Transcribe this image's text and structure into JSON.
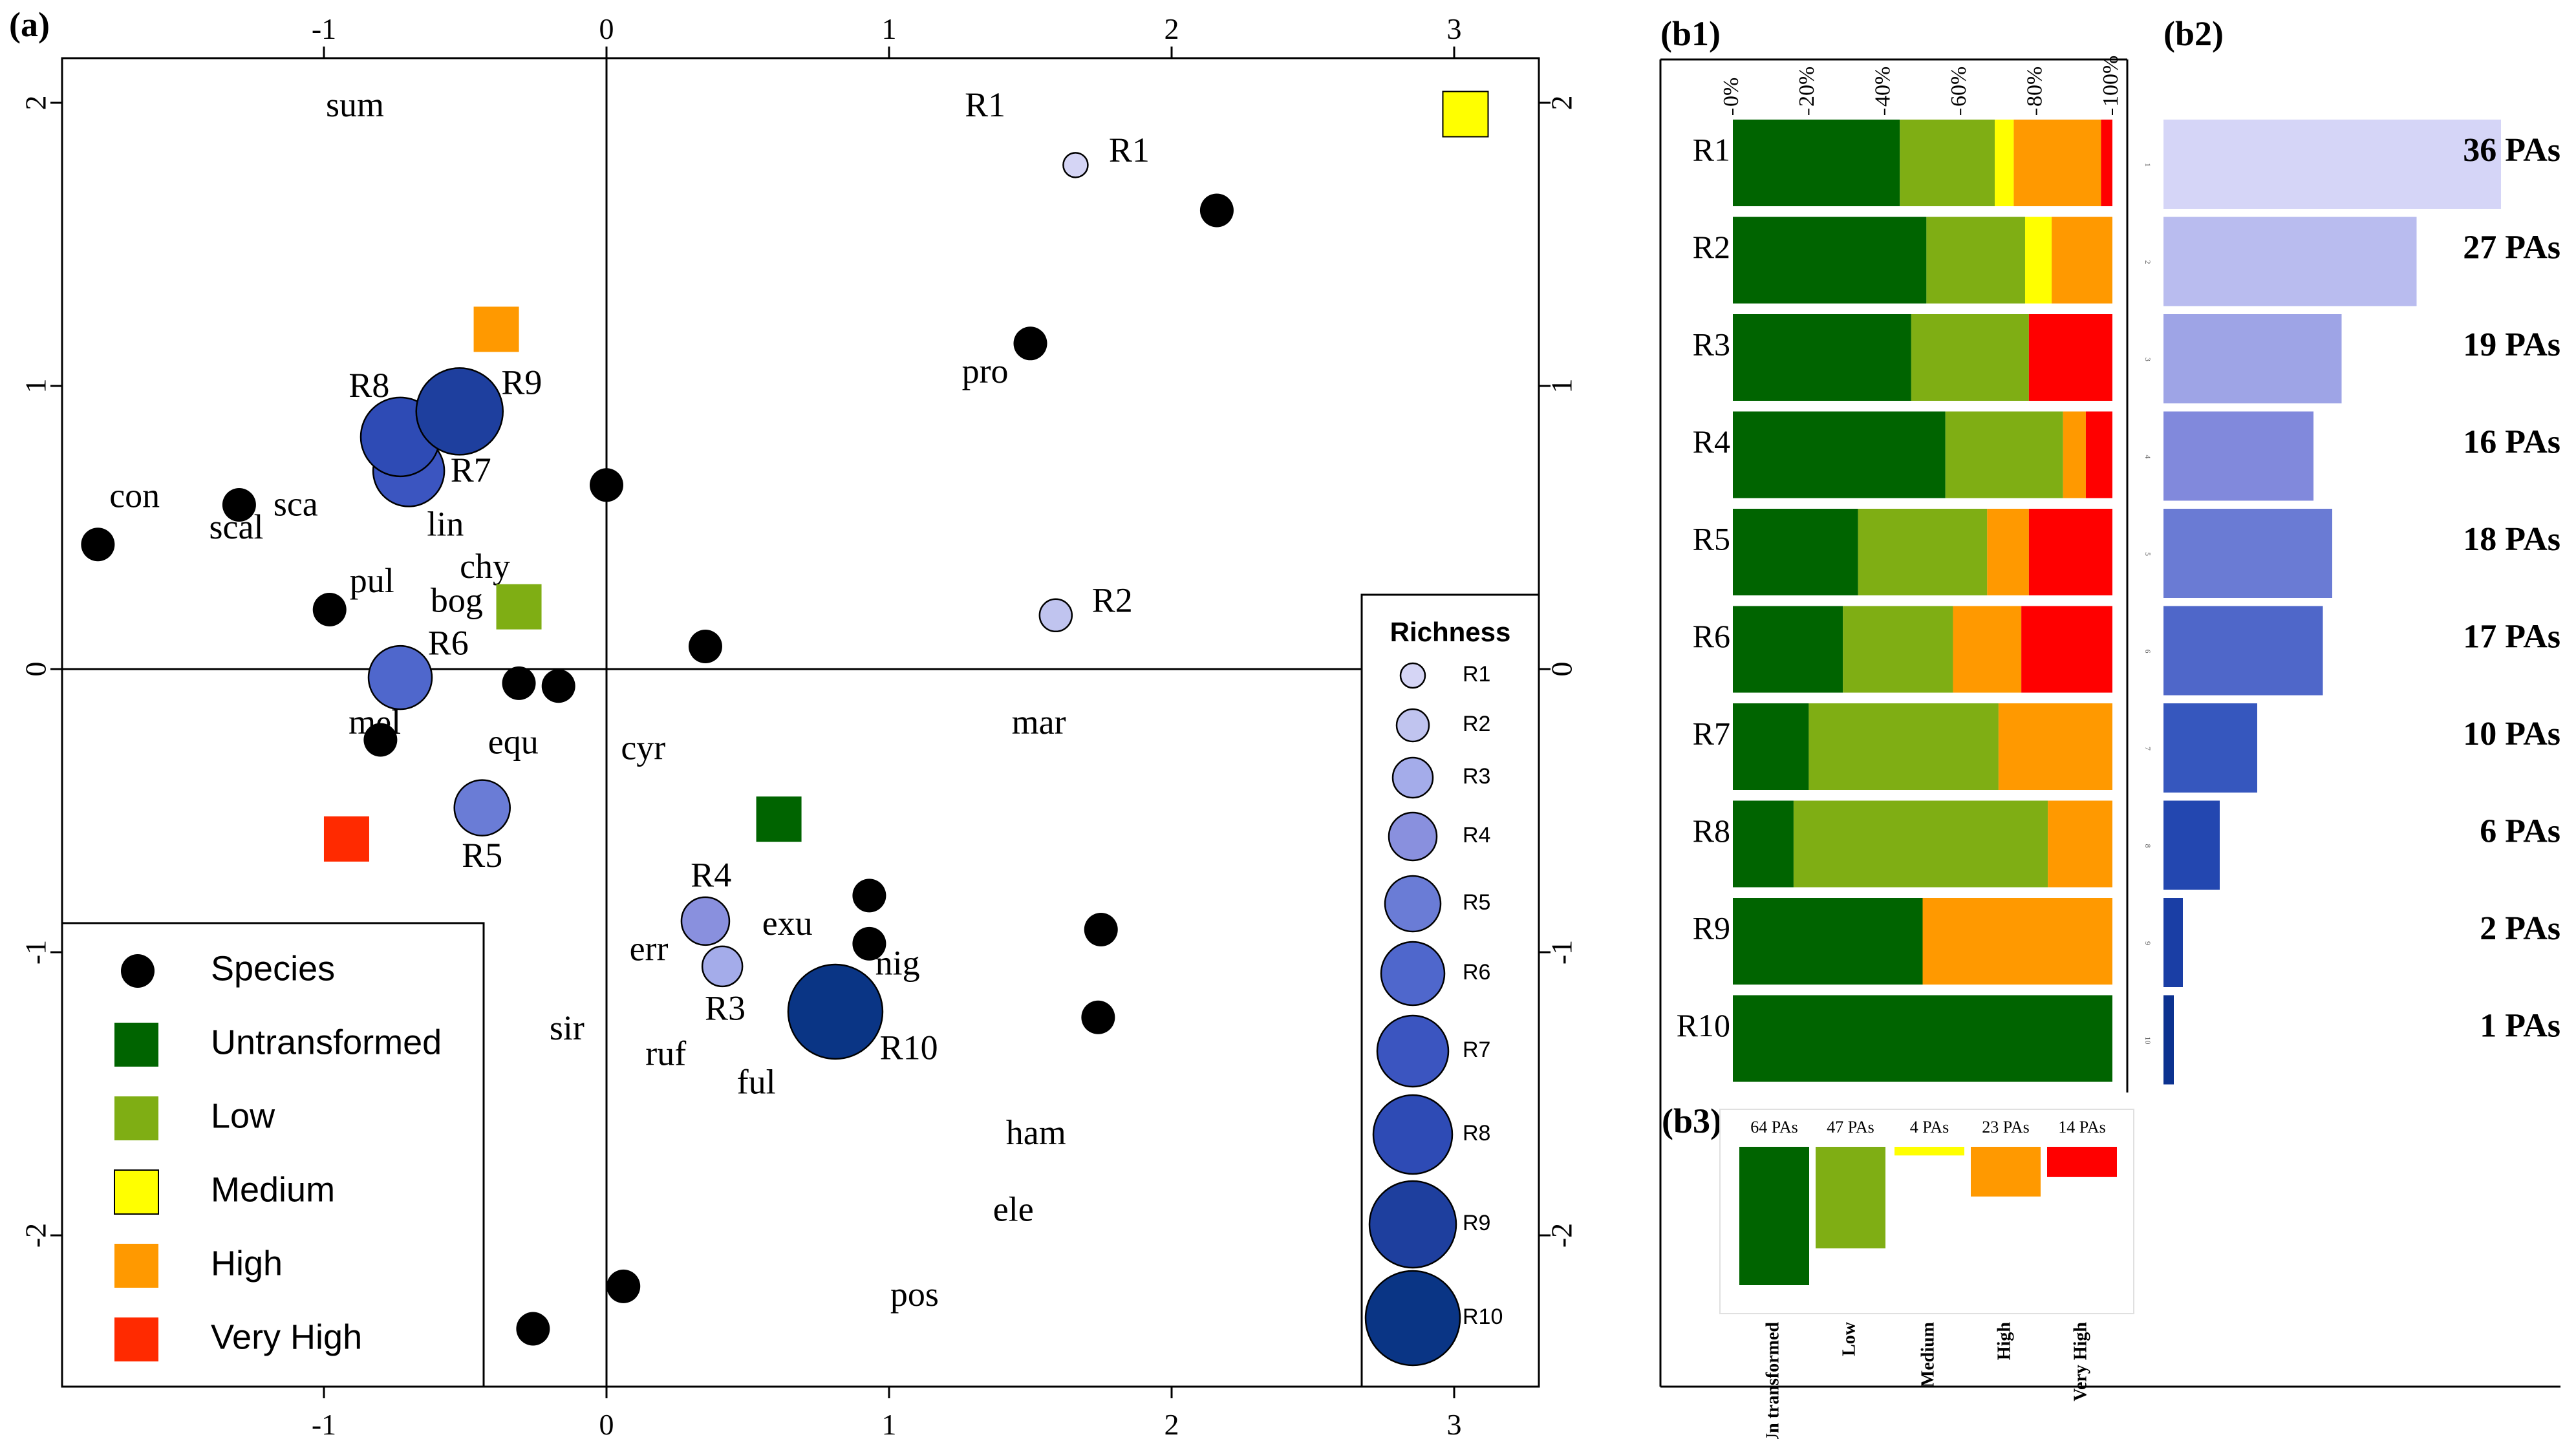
{
  "panel_labels": {
    "a": "(a)",
    "b1": "(b1)",
    "b2": "(b2)",
    "b3": "(b3)"
  },
  "chart_data": [
    {
      "type": "scatter",
      "panel": "(a)",
      "xlim": [
        -1.9,
        3.3
      ],
      "ylim": [
        -2.5,
        2.15
      ],
      "x_ticks": [
        "-1",
        "0",
        "1",
        "2",
        "3"
      ],
      "x_tick_values": [
        -1,
        0,
        1,
        2,
        3
      ],
      "y_ticks": [
        "-2",
        "-1",
        "0",
        "1",
        "2"
      ],
      "y_tick_values": [
        -2,
        -1,
        0,
        1,
        2
      ],
      "reference_lines": {
        "x": 0,
        "y": 0
      },
      "species_points": [
        {
          "x": -1.8,
          "y": 0.44
        },
        {
          "x": -1.3,
          "y": 0.58
        },
        {
          "x": -0.98,
          "y": 0.21
        },
        {
          "x": -0.8,
          "y": -0.25
        },
        {
          "x": -0.31,
          "y": -0.05
        },
        {
          "x": -0.17,
          "y": -0.06
        },
        {
          "x": 0.0,
          "y": 0.65
        },
        {
          "x": 0.35,
          "y": 0.08
        },
        {
          "x": 1.5,
          "y": 1.15
        },
        {
          "x": 2.16,
          "y": 1.62
        },
        {
          "x": 0.93,
          "y": -0.8
        },
        {
          "x": 0.93,
          "y": -0.97
        },
        {
          "x": 1.75,
          "y": -0.92
        },
        {
          "x": 1.74,
          "y": -1.23
        },
        {
          "x": 0.06,
          "y": -2.18
        },
        {
          "x": -0.26,
          "y": -2.33
        }
      ],
      "species_labels": [
        {
          "text": "sum",
          "x": -0.89,
          "y": 1.98
        },
        {
          "text": "con",
          "x": -1.67,
          "y": 0.6
        },
        {
          "text": "scal",
          "x": -1.31,
          "y": 0.49
        },
        {
          "text": "sca",
          "x": -1.1,
          "y": 0.57
        },
        {
          "text": "lin",
          "x": -0.57,
          "y": 0.5
        },
        {
          "text": "chy",
          "x": -0.43,
          "y": 0.35
        },
        {
          "text": "pul",
          "x": -0.83,
          "y": 0.3
        },
        {
          "text": "bog",
          "x": -0.53,
          "y": 0.23
        },
        {
          "text": "mel",
          "x": -0.82,
          "y": -0.2
        },
        {
          "text": "equ",
          "x": -0.33,
          "y": -0.27
        },
        {
          "text": "cyr",
          "x": 0.13,
          "y": -0.29
        },
        {
          "text": "pro",
          "x": 1.34,
          "y": 1.04
        },
        {
          "text": "mar",
          "x": 1.53,
          "y": -0.2
        },
        {
          "text": "err",
          "x": 0.15,
          "y": -1.0
        },
        {
          "text": "exu",
          "x": 0.64,
          "y": -0.91
        },
        {
          "text": "nig",
          "x": 1.03,
          "y": -1.05
        },
        {
          "text": "sir",
          "x": -0.14,
          "y": -1.28
        },
        {
          "text": "ruf",
          "x": 0.21,
          "y": -1.37
        },
        {
          "text": "ful",
          "x": 0.53,
          "y": -1.47
        },
        {
          "text": "ham",
          "x": 1.52,
          "y": -1.65
        },
        {
          "text": "ele",
          "x": 1.44,
          "y": -1.92
        },
        {
          "text": "pos",
          "x": 1.09,
          "y": -2.22
        }
      ],
      "region_points": [
        {
          "name": "R1",
          "x": 1.66,
          "y": 1.78,
          "label_x": 1.85,
          "label_y": 1.82,
          "color": "#d5d5f5"
        },
        {
          "name": "R2",
          "x": 1.59,
          "y": 0.19,
          "label_x": 1.79,
          "label_y": 0.23,
          "color": "#c0c4ef"
        },
        {
          "name": "R3",
          "x": 0.41,
          "y": -1.05,
          "label_x": 0.42,
          "label_y": -1.21,
          "color": "#a4acea"
        },
        {
          "name": "R4",
          "x": 0.35,
          "y": -0.89,
          "label_x": 0.37,
          "label_y": -0.74,
          "color": "#8990de"
        },
        {
          "name": "R5",
          "x": -0.44,
          "y": -0.49,
          "label_x": -0.44,
          "label_y": -0.67,
          "color": "#6a7cd6"
        },
        {
          "name": "R6",
          "x": -0.73,
          "y": -0.03,
          "label_x": -0.56,
          "label_y": 0.08,
          "color": "#4f67cc"
        },
        {
          "name": "R7",
          "x": -0.7,
          "y": 0.7,
          "label_x": -0.48,
          "label_y": 0.69,
          "color": "#3b55c0"
        },
        {
          "name": "R8",
          "x": -0.73,
          "y": 0.82,
          "label_x": -0.84,
          "label_y": 0.99,
          "color": "#2e4bb5"
        },
        {
          "name": "R9",
          "x": -0.52,
          "y": 0.91,
          "label_x": -0.3,
          "label_y": 1.0,
          "color": "#1e3f9e"
        },
        {
          "name": "R10",
          "x": 0.81,
          "y": -1.21,
          "label_x": 1.07,
          "label_y": -1.35,
          "color": "#0a3585"
        }
      ],
      "category_points": [
        {
          "name": "Untransformed",
          "x": 0.61,
          "y": -0.53
        },
        {
          "name": "Low",
          "x": -0.31,
          "y": 0.22
        },
        {
          "name": "Medium",
          "x": 3.04,
          "y": 1.96
        },
        {
          "name": "High",
          "x": -0.39,
          "y": 1.2
        },
        {
          "name": "Very High",
          "x": -0.92,
          "y": -0.6
        }
      ],
      "extra_labels": [
        {
          "text": "R1",
          "x": 1.34,
          "y": 1.98
        }
      ],
      "legend": {
        "placement": "bottom-left",
        "items": [
          {
            "label": "Species",
            "shape": "circle",
            "color": "#000000"
          },
          {
            "label": "Untransformed",
            "shape": "square",
            "color": "#006400"
          },
          {
            "label": "Low",
            "shape": "square",
            "color": "#7fae14"
          },
          {
            "label": "Medium",
            "shape": "square",
            "color": "#ffff00"
          },
          {
            "label": "High",
            "shape": "square",
            "color": "#ff9900"
          },
          {
            "label": "Very High",
            "shape": "square",
            "color": "#ff2a00"
          }
        ]
      },
      "richness_legend": {
        "title": "Richness",
        "placement": "bottom-right",
        "items": [
          "R1",
          "R2",
          "R3",
          "R4",
          "R5",
          "R6",
          "R7",
          "R8",
          "R9",
          "R10"
        ]
      }
    },
    {
      "type": "bar",
      "panel": "(b1)",
      "orientation": "horizontal-stacked-percent",
      "categories": [
        "R1",
        "R2",
        "R3",
        "R4",
        "R5",
        "R6",
        "R7",
        "R8",
        "R9",
        "R10"
      ],
      "x_ticks": [
        "0%",
        "20%",
        "40%",
        "60%",
        "80%",
        "100%"
      ],
      "series": [
        {
          "name": "Untransformed",
          "color": "#006400",
          "values": [
            44,
            51,
            47,
            56,
            33,
            29,
            20,
            16,
            50,
            100
          ]
        },
        {
          "name": "Low",
          "color": "#7fae14",
          "values": [
            25,
            26,
            31,
            31,
            34,
            29,
            50,
            67,
            0,
            0
          ]
        },
        {
          "name": "Medium",
          "color": "#ffff00",
          "values": [
            5,
            7,
            0,
            0,
            0,
            0,
            0,
            0,
            0,
            0
          ]
        },
        {
          "name": "High",
          "color": "#ff9900",
          "values": [
            23,
            16,
            0,
            6,
            11,
            18,
            30,
            17,
            50,
            0
          ]
        },
        {
          "name": "Very High",
          "color": "#ff0000",
          "values": [
            3,
            0,
            22,
            7,
            22,
            24,
            0,
            0,
            0,
            0
          ]
        }
      ]
    },
    {
      "type": "bar",
      "panel": "(b2)",
      "orientation": "horizontal",
      "categories": [
        "1",
        "2",
        "3",
        "4",
        "5",
        "6",
        "7",
        "8",
        "9",
        "10"
      ],
      "values": [
        36,
        27,
        19,
        16,
        18,
        17,
        10,
        6,
        2,
        1
      ],
      "value_labels": [
        "36 PAs",
        "27 PAs",
        "19 PAs",
        "16 PAs",
        "18 PAs",
        "17 PAs",
        "10 PAs",
        "6 PAs",
        "2 PAs",
        "1 PAs"
      ],
      "colors": [
        "#d5d5f7",
        "#b9bcef",
        "#9ea4e6",
        "#8189dc",
        "#6a7bd4",
        "#4f67c9",
        "#3657be",
        "#2347b0",
        "#1a3ea5",
        "#0c3290"
      ],
      "xlim": [
        0,
        40
      ]
    },
    {
      "type": "bar",
      "panel": "(b3)",
      "orientation": "vertical-downward",
      "categories": [
        "Un transformed",
        "Low",
        "Medium",
        "High",
        "Very High"
      ],
      "values": [
        64,
        47,
        4,
        23,
        14
      ],
      "value_labels": [
        "64 PAs",
        "47 PAs",
        "4 PAs",
        "23 PAs",
        "14 PAs"
      ],
      "colors": [
        "#006400",
        "#7fae14",
        "#ffff00",
        "#ff9900",
        "#ff0000"
      ],
      "ylim": [
        0,
        70
      ]
    }
  ]
}
